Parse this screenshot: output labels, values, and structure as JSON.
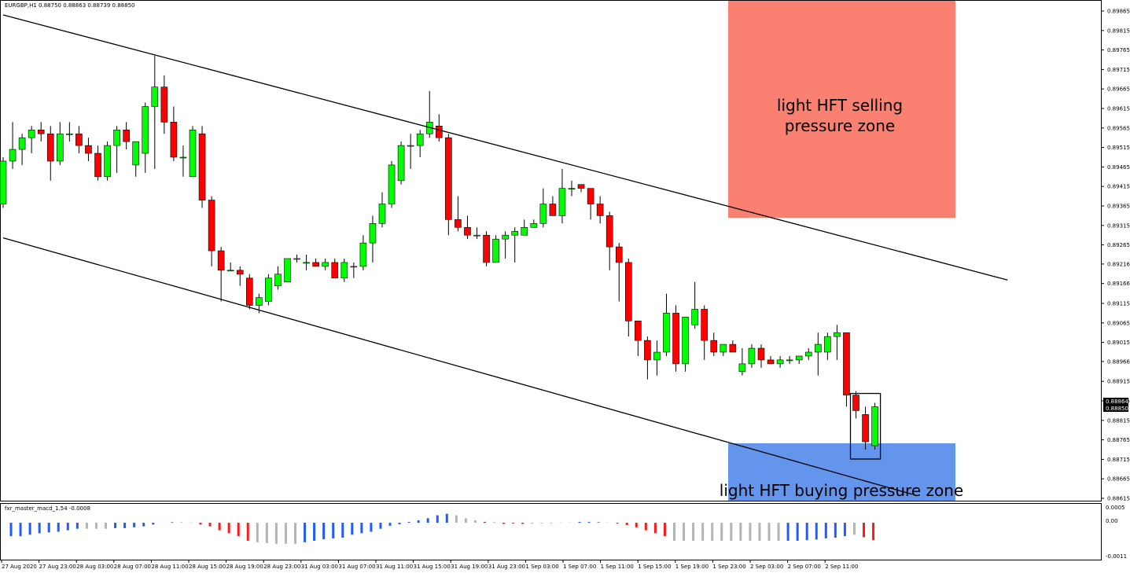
{
  "header": {
    "symbol_info": "EURGBP,H1  0.88750 0.88863 0.88739 0.88850"
  },
  "indicator": {
    "label": "fxr_master_macd_1.54 -0.0008",
    "scale": [
      "0.0005",
      "0.00",
      "-0.0011"
    ],
    "colors": {
      "blue": "#1f5cff",
      "gray": "#b4b4b4",
      "red": "#ff1a1a"
    }
  },
  "zones": {
    "selling": {
      "line1": "light HFT selling",
      "line2": "pressure zone",
      "color": "#fa8072"
    },
    "buying": {
      "line1": "light HFT buying pressure zone",
      "color": "#6495ed"
    }
  },
  "price_scale": {
    "labels": [
      "0.89865",
      "0.89815",
      "0.89765",
      "0.89715",
      "0.89665",
      "0.89615",
      "0.89565",
      "0.89515",
      "0.89465",
      "0.89415",
      "0.89365",
      "0.89315",
      "0.89265",
      "0.89216",
      "0.89166",
      "0.89115",
      "0.89065",
      "0.89015",
      "0.88966",
      "0.88915",
      "0.88865",
      "0.88815",
      "0.88765",
      "0.88715",
      "0.88665",
      "0.88615"
    ],
    "current_high": "0.88864",
    "current_price": "0.88850"
  },
  "time_axis": {
    "labels": [
      "27 Aug 2020",
      "27 Aug 23:00",
      "28 Aug 03:00",
      "28 Aug 07:00",
      "28 Aug 11:00",
      "28 Aug 15:00",
      "28 Aug 19:00",
      "28 Aug 23:00",
      "31 Aug 03:00",
      "31 Aug 07:00",
      "31 Aug 11:00",
      "31 Aug 15:00",
      "31 Aug 19:00",
      "31 Aug 23:00",
      "1 Sep 03:00",
      "1 Sep 07:00",
      "1 Sep 11:00",
      "1 Sep 15:00",
      "1 Sep 19:00",
      "1 Sep 23:00",
      "2 Sep 03:00",
      "2 Sep 07:00",
      "2 Sep 11:00"
    ]
  },
  "chart_data": {
    "type": "candlestick",
    "symbol": "EURGBP",
    "timeframe": "H1",
    "bull_color": "#00ff00",
    "bear_color": "#ff0000",
    "candles": [
      {
        "o": 0.8937,
        "h": 0.8949,
        "l": 0.8936,
        "c": 0.8948
      },
      {
        "o": 0.8948,
        "h": 0.8958,
        "l": 0.8946,
        "c": 0.8951
      },
      {
        "o": 0.8951,
        "h": 0.8955,
        "l": 0.8947,
        "c": 0.8954
      },
      {
        "o": 0.8954,
        "h": 0.8957,
        "l": 0.895,
        "c": 0.8956
      },
      {
        "o": 0.8956,
        "h": 0.8958,
        "l": 0.8953,
        "c": 0.8955
      },
      {
        "o": 0.8955,
        "h": 0.8957,
        "l": 0.8943,
        "c": 0.8948
      },
      {
        "o": 0.8948,
        "h": 0.8958,
        "l": 0.8947,
        "c": 0.8955
      },
      {
        "o": 0.8955,
        "h": 0.8958,
        "l": 0.8953,
        "c": 0.8955
      },
      {
        "o": 0.8955,
        "h": 0.8957,
        "l": 0.895,
        "c": 0.8952
      },
      {
        "o": 0.8952,
        "h": 0.8954,
        "l": 0.8948,
        "c": 0.895
      },
      {
        "o": 0.895,
        "h": 0.8952,
        "l": 0.8943,
        "c": 0.8944
      },
      {
        "o": 0.8944,
        "h": 0.8953,
        "l": 0.8943,
        "c": 0.8952
      },
      {
        "o": 0.8952,
        "h": 0.8957,
        "l": 0.8945,
        "c": 0.8956
      },
      {
        "o": 0.8956,
        "h": 0.8958,
        "l": 0.8951,
        "c": 0.8953
      },
      {
        "o": 0.8947,
        "h": 0.8953,
        "l": 0.8944,
        "c": 0.8953
      },
      {
        "o": 0.895,
        "h": 0.8963,
        "l": 0.8945,
        "c": 0.8962
      },
      {
        "o": 0.8962,
        "h": 0.8975,
        "l": 0.8946,
        "c": 0.8967
      },
      {
        "o": 0.8967,
        "h": 0.897,
        "l": 0.8955,
        "c": 0.8958
      },
      {
        "o": 0.8958,
        "h": 0.8962,
        "l": 0.8948,
        "c": 0.8949
      },
      {
        "o": 0.8949,
        "h": 0.8952,
        "l": 0.8944,
        "c": 0.8949
      },
      {
        "o": 0.8944,
        "h": 0.8957,
        "l": 0.8944,
        "c": 0.8956
      },
      {
        "o": 0.8955,
        "h": 0.8957,
        "l": 0.8936,
        "c": 0.8938
      },
      {
        "o": 0.8938,
        "h": 0.8939,
        "l": 0.8921,
        "c": 0.8925
      },
      {
        "o": 0.8925,
        "h": 0.8926,
        "l": 0.8912,
        "c": 0.892
      },
      {
        "o": 0.892,
        "h": 0.8922,
        "l": 0.892,
        "c": 0.892
      },
      {
        "o": 0.892,
        "h": 0.8921,
        "l": 0.8916,
        "c": 0.8919
      },
      {
        "o": 0.8918,
        "h": 0.8919,
        "l": 0.891,
        "c": 0.8911
      },
      {
        "o": 0.8911,
        "h": 0.8914,
        "l": 0.8909,
        "c": 0.8913
      },
      {
        "o": 0.8912,
        "h": 0.8919,
        "l": 0.8911,
        "c": 0.8918
      },
      {
        "o": 0.8916,
        "h": 0.8921,
        "l": 0.8915,
        "c": 0.8919
      },
      {
        "o": 0.8917,
        "h": 0.8923,
        "l": 0.8917,
        "c": 0.8923
      },
      {
        "o": 0.8923,
        "h": 0.8924,
        "l": 0.8922,
        "c": 0.8923
      },
      {
        "o": 0.8922,
        "h": 0.8924,
        "l": 0.892,
        "c": 0.8922
      },
      {
        "o": 0.8922,
        "h": 0.8923,
        "l": 0.8921,
        "c": 0.8921
      },
      {
        "o": 0.8921,
        "h": 0.8923,
        "l": 0.892,
        "c": 0.8922
      },
      {
        "o": 0.8922,
        "h": 0.8923,
        "l": 0.8918,
        "c": 0.8918
      },
      {
        "o": 0.8918,
        "h": 0.8923,
        "l": 0.8917,
        "c": 0.8922
      },
      {
        "o": 0.8921,
        "h": 0.8922,
        "l": 0.8918,
        "c": 0.8921
      },
      {
        "o": 0.8921,
        "h": 0.8929,
        "l": 0.892,
        "c": 0.8927
      },
      {
        "o": 0.8927,
        "h": 0.8934,
        "l": 0.8922,
        "c": 0.8932
      },
      {
        "o": 0.8932,
        "h": 0.894,
        "l": 0.8931,
        "c": 0.8937
      },
      {
        "o": 0.8937,
        "h": 0.8948,
        "l": 0.8936,
        "c": 0.8947
      },
      {
        "o": 0.8943,
        "h": 0.8953,
        "l": 0.8942,
        "c": 0.8952
      },
      {
        "o": 0.8952,
        "h": 0.8955,
        "l": 0.8946,
        "c": 0.8952
      },
      {
        "o": 0.8952,
        "h": 0.8956,
        "l": 0.8949,
        "c": 0.8955
      },
      {
        "o": 0.8955,
        "h": 0.8966,
        "l": 0.8954,
        "c": 0.8958
      },
      {
        "o": 0.8957,
        "h": 0.896,
        "l": 0.8953,
        "c": 0.8954
      },
      {
        "o": 0.8954,
        "h": 0.8955,
        "l": 0.8929,
        "c": 0.8933
      },
      {
        "o": 0.8933,
        "h": 0.8939,
        "l": 0.893,
        "c": 0.8931
      },
      {
        "o": 0.8931,
        "h": 0.8934,
        "l": 0.8928,
        "c": 0.8929
      },
      {
        "o": 0.8929,
        "h": 0.8931,
        "l": 0.8928,
        "c": 0.8929
      },
      {
        "o": 0.8929,
        "h": 0.893,
        "l": 0.8921,
        "c": 0.8922
      },
      {
        "o": 0.8922,
        "h": 0.8929,
        "l": 0.8922,
        "c": 0.8928
      },
      {
        "o": 0.8928,
        "h": 0.893,
        "l": 0.8923,
        "c": 0.8929
      },
      {
        "o": 0.8929,
        "h": 0.8931,
        "l": 0.8922,
        "c": 0.893
      },
      {
        "o": 0.8929,
        "h": 0.8933,
        "l": 0.8929,
        "c": 0.8931
      },
      {
        "o": 0.8931,
        "h": 0.8933,
        "l": 0.8931,
        "c": 0.8932
      },
      {
        "o": 0.8932,
        "h": 0.8941,
        "l": 0.8931,
        "c": 0.8937
      },
      {
        "o": 0.8937,
        "h": 0.8939,
        "l": 0.8934,
        "c": 0.8934
      },
      {
        "o": 0.8934,
        "h": 0.8946,
        "l": 0.8932,
        "c": 0.8941
      },
      {
        "o": 0.8941,
        "h": 0.8943,
        "l": 0.8939,
        "c": 0.8941
      },
      {
        "o": 0.8942,
        "h": 0.8942,
        "l": 0.894,
        "c": 0.8941
      },
      {
        "o": 0.8941,
        "h": 0.8941,
        "l": 0.8933,
        "c": 0.8937
      },
      {
        "o": 0.8937,
        "h": 0.8939,
        "l": 0.8932,
        "c": 0.8934
      },
      {
        "o": 0.8934,
        "h": 0.8935,
        "l": 0.892,
        "c": 0.8926
      },
      {
        "o": 0.8926,
        "h": 0.8927,
        "l": 0.8912,
        "c": 0.8922
      },
      {
        "o": 0.8922,
        "h": 0.8923,
        "l": 0.8903,
        "c": 0.8907
      },
      {
        "o": 0.8907,
        "h": 0.8907,
        "l": 0.8898,
        "c": 0.8902
      },
      {
        "o": 0.8902,
        "h": 0.8903,
        "l": 0.8892,
        "c": 0.8897
      },
      {
        "o": 0.8897,
        "h": 0.8902,
        "l": 0.8893,
        "c": 0.8899
      },
      {
        "o": 0.8899,
        "h": 0.8914,
        "l": 0.8898,
        "c": 0.8909
      },
      {
        "o": 0.8909,
        "h": 0.8911,
        "l": 0.8894,
        "c": 0.8896
      },
      {
        "o": 0.8896,
        "h": 0.8908,
        "l": 0.8894,
        "c": 0.8908
      },
      {
        "o": 0.8906,
        "h": 0.8917,
        "l": 0.8905,
        "c": 0.891
      },
      {
        "o": 0.891,
        "h": 0.8911,
        "l": 0.8897,
        "c": 0.8902
      },
      {
        "o": 0.8902,
        "h": 0.8904,
        "l": 0.8898,
        "c": 0.8899
      },
      {
        "o": 0.8899,
        "h": 0.8901,
        "l": 0.8898,
        "c": 0.8901
      },
      {
        "o": 0.8901,
        "h": 0.8902,
        "l": 0.8899,
        "c": 0.8899
      },
      {
        "o": 0.8894,
        "h": 0.89,
        "l": 0.8893,
        "c": 0.8896
      },
      {
        "o": 0.8896,
        "h": 0.8901,
        "l": 0.8895,
        "c": 0.89
      },
      {
        "o": 0.89,
        "h": 0.8901,
        "l": 0.8895,
        "c": 0.8897
      },
      {
        "o": 0.8897,
        "h": 0.8898,
        "l": 0.8896,
        "c": 0.8896
      },
      {
        "o": 0.8896,
        "h": 0.8898,
        "l": 0.8895,
        "c": 0.8897
      },
      {
        "o": 0.8897,
        "h": 0.8898,
        "l": 0.8896,
        "c": 0.8897
      },
      {
        "o": 0.8897,
        "h": 0.8898,
        "l": 0.8896,
        "c": 0.8898
      },
      {
        "o": 0.8898,
        "h": 0.89,
        "l": 0.8897,
        "c": 0.8899
      },
      {
        "o": 0.8899,
        "h": 0.8904,
        "l": 0.8893,
        "c": 0.8901
      },
      {
        "o": 0.8899,
        "h": 0.8904,
        "l": 0.8897,
        "c": 0.8903
      },
      {
        "o": 0.8903,
        "h": 0.8906,
        "l": 0.8897,
        "c": 0.8904
      },
      {
        "o": 0.8904,
        "h": 0.8904,
        "l": 0.8885,
        "c": 0.8888
      },
      {
        "o": 0.8888,
        "h": 0.8889,
        "l": 0.8882,
        "c": 0.8884
      },
      {
        "o": 0.8883,
        "h": 0.8885,
        "l": 0.8874,
        "c": 0.8876
      },
      {
        "o": 0.8875,
        "h": 0.8886,
        "l": 0.8874,
        "c": 0.8885
      }
    ],
    "channel_lines": [
      {
        "from": {
          "candle": 0,
          "price": 0.89855
        },
        "to": {
          "candle": 106,
          "price": 0.89175
        }
      },
      {
        "from": {
          "candle": 0,
          "price": 0.89283
        },
        "to": {
          "candle": 96,
          "price": 0.88625
        }
      }
    ],
    "marked_candles": [
      90,
      92
    ],
    "macd_histogram": [
      {
        "v": -0.00045,
        "c": "blue"
      },
      {
        "v": -0.00045,
        "c": "blue"
      },
      {
        "v": -0.0004,
        "c": "blue"
      },
      {
        "v": -0.00035,
        "c": "blue"
      },
      {
        "v": -0.00032,
        "c": "blue"
      },
      {
        "v": -0.0003,
        "c": "blue"
      },
      {
        "v": -0.00025,
        "c": "blue"
      },
      {
        "v": -0.0002,
        "c": "blue"
      },
      {
        "v": -0.0002,
        "c": "gray"
      },
      {
        "v": -0.0002,
        "c": "gray"
      },
      {
        "v": -0.0002,
        "c": "gray"
      },
      {
        "v": -0.00018,
        "c": "blue"
      },
      {
        "v": -0.00018,
        "c": "blue"
      },
      {
        "v": -0.00015,
        "c": "blue"
      },
      {
        "v": -0.00012,
        "c": "blue"
      },
      {
        "v": -6e-05,
        "c": "blue"
      },
      {
        "v": 0.0,
        "c": "gray"
      },
      {
        "v": 2e-05,
        "c": "blue"
      },
      {
        "v": 2e-05,
        "c": "gray"
      },
      {
        "v": 1e-05,
        "c": "gray"
      },
      {
        "v": -6e-05,
        "c": "red"
      },
      {
        "v": -0.00012,
        "c": "red"
      },
      {
        "v": -0.00025,
        "c": "red"
      },
      {
        "v": -0.00035,
        "c": "red"
      },
      {
        "v": -0.00045,
        "c": "red"
      },
      {
        "v": -0.0006,
        "c": "red"
      },
      {
        "v": -0.00065,
        "c": "gray"
      },
      {
        "v": -0.00068,
        "c": "gray"
      },
      {
        "v": -0.0007,
        "c": "gray"
      },
      {
        "v": -0.0007,
        "c": "gray"
      },
      {
        "v": -0.0007,
        "c": "gray"
      },
      {
        "v": -0.00065,
        "c": "blue"
      },
      {
        "v": -0.0006,
        "c": "blue"
      },
      {
        "v": -0.00055,
        "c": "blue"
      },
      {
        "v": -0.00052,
        "c": "blue"
      },
      {
        "v": -0.0005,
        "c": "blue"
      },
      {
        "v": -0.0004,
        "c": "blue"
      },
      {
        "v": -0.00035,
        "c": "blue"
      },
      {
        "v": -0.0003,
        "c": "blue"
      },
      {
        "v": -0.0002,
        "c": "blue"
      },
      {
        "v": -0.0001,
        "c": "blue"
      },
      {
        "v": -5e-05,
        "c": "blue"
      },
      {
        "v": 3e-05,
        "c": "blue"
      },
      {
        "v": 8e-05,
        "c": "blue"
      },
      {
        "v": 0.00015,
        "c": "blue"
      },
      {
        "v": 0.00025,
        "c": "blue"
      },
      {
        "v": 0.0003,
        "c": "blue"
      },
      {
        "v": 0.00025,
        "c": "gray"
      },
      {
        "v": 0.00015,
        "c": "gray"
      },
      {
        "v": 8e-05,
        "c": "gray"
      },
      {
        "v": 3e-05,
        "c": "red"
      },
      {
        "v": 1e-05,
        "c": "red"
      },
      {
        "v": -4e-05,
        "c": "red"
      },
      {
        "v": -3e-05,
        "c": "red"
      },
      {
        "v": -4e-05,
        "c": "red"
      },
      {
        "v": -3e-05,
        "c": "gray"
      },
      {
        "v": -2e-05,
        "c": "gray"
      },
      {
        "v": -1e-05,
        "c": "blue"
      },
      {
        "v": 1e-05,
        "c": "gray"
      },
      {
        "v": 1e-05,
        "c": "gray"
      },
      {
        "v": 3e-05,
        "c": "blue"
      },
      {
        "v": 3e-05,
        "c": "blue"
      },
      {
        "v": 2e-05,
        "c": "blue"
      },
      {
        "v": 1e-05,
        "c": "gray"
      },
      {
        "v": -3e-05,
        "c": "red"
      },
      {
        "v": -8e-05,
        "c": "red"
      },
      {
        "v": -0.00015,
        "c": "red"
      },
      {
        "v": -0.00025,
        "c": "red"
      },
      {
        "v": -0.00035,
        "c": "red"
      },
      {
        "v": -0.00045,
        "c": "red"
      },
      {
        "v": -0.0006,
        "c": "gray"
      },
      {
        "v": -0.0006,
        "c": "gray"
      },
      {
        "v": -0.0006,
        "c": "gray"
      },
      {
        "v": -0.0006,
        "c": "gray"
      },
      {
        "v": -0.0006,
        "c": "gray"
      },
      {
        "v": -0.0006,
        "c": "gray"
      },
      {
        "v": -0.0006,
        "c": "gray"
      },
      {
        "v": -0.0006,
        "c": "gray"
      },
      {
        "v": -0.0006,
        "c": "gray"
      },
      {
        "v": -0.0006,
        "c": "gray"
      },
      {
        "v": -0.0006,
        "c": "gray"
      },
      {
        "v": -0.0006,
        "c": "gray"
      },
      {
        "v": -0.0006,
        "c": "blue"
      },
      {
        "v": -0.0006,
        "c": "blue"
      },
      {
        "v": -0.00058,
        "c": "blue"
      },
      {
        "v": -0.00056,
        "c": "blue"
      },
      {
        "v": -0.00052,
        "c": "blue"
      },
      {
        "v": -0.0005,
        "c": "blue"
      },
      {
        "v": -0.00045,
        "c": "blue"
      },
      {
        "v": -0.0004,
        "c": "gray"
      },
      {
        "v": -0.00048,
        "c": "red"
      },
      {
        "v": -0.00058,
        "c": "red"
      }
    ],
    "y_range": [
      0.886,
      0.8989
    ],
    "macd_range": [
      -0.0011,
      0.0005
    ]
  }
}
